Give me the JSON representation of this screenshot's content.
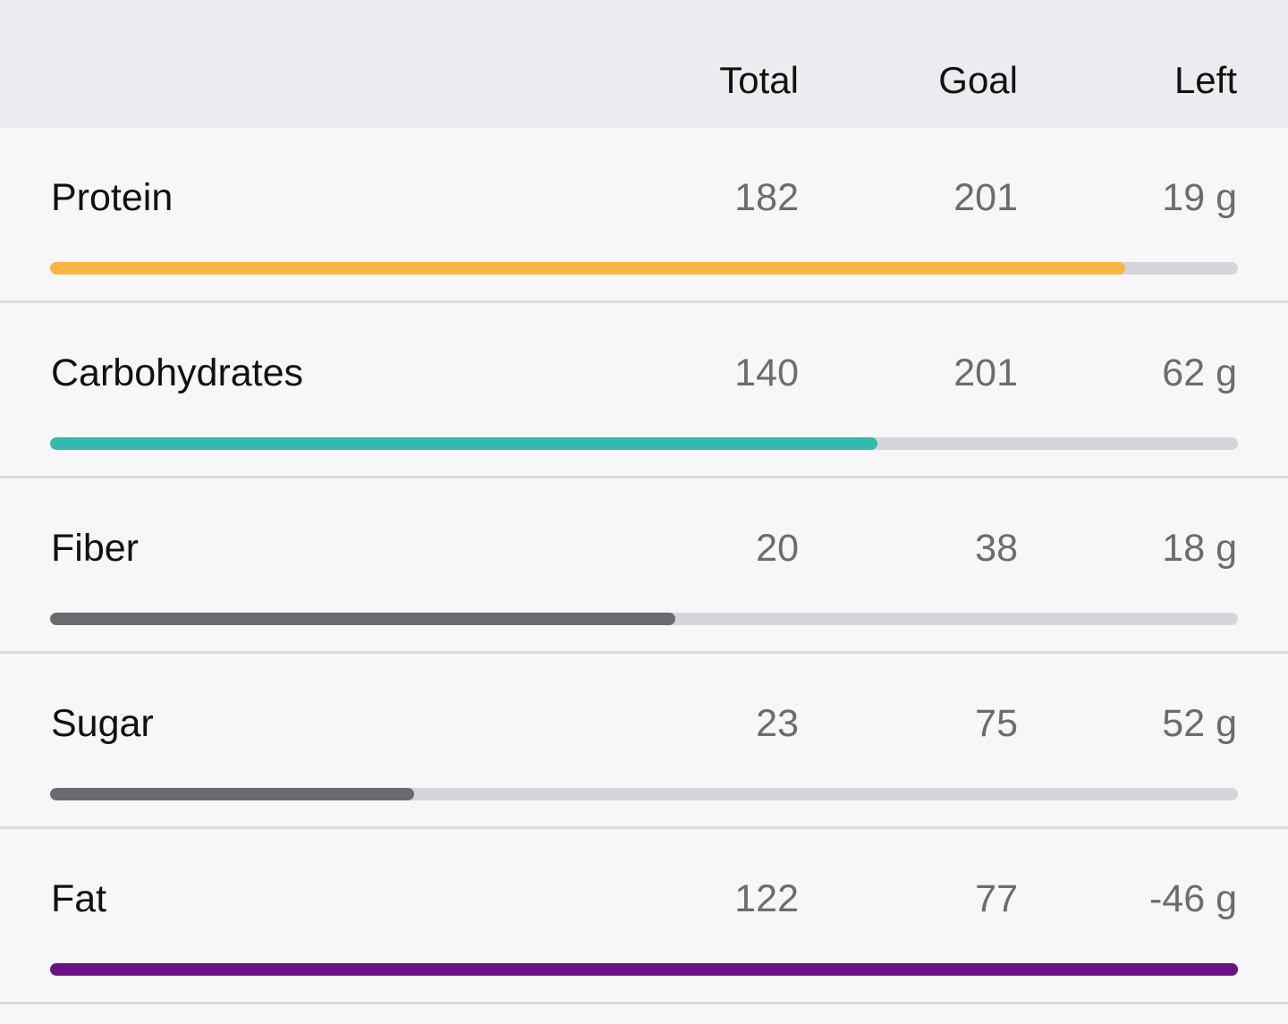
{
  "header": {
    "columns": [
      "Total",
      "Goal",
      "Left"
    ]
  },
  "rows": [
    {
      "name": "Protein",
      "total": 182,
      "goal": 201,
      "left": "19 g",
      "color": "#f9b545"
    },
    {
      "name": "Carbohydrates",
      "total": 140,
      "goal": 201,
      "left": "62 g",
      "color": "#35b8ad"
    },
    {
      "name": "Fiber",
      "total": 20,
      "goal": 38,
      "left": "18 g",
      "color": "#6b6b6f"
    },
    {
      "name": "Sugar",
      "total": 23,
      "goal": 75,
      "left": "52 g",
      "color": "#6b6b6f"
    },
    {
      "name": "Fat",
      "total": 122,
      "goal": 77,
      "left": "-46 g",
      "color": "#6a1285"
    }
  ]
}
